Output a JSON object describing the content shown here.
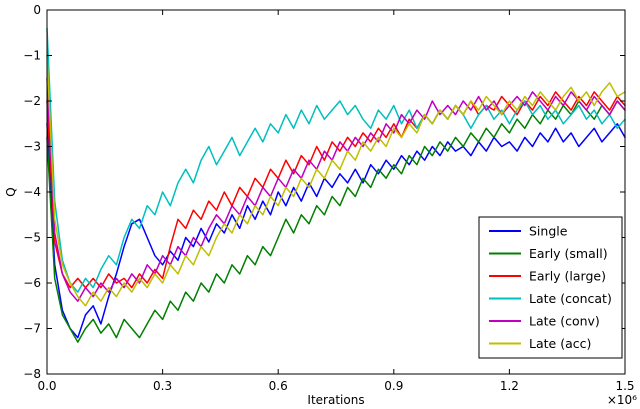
{
  "figure": {
    "xlabel": "Iterations",
    "ylabel": "Q",
    "x_offset_text": "×10⁶",
    "background_color": "#ffffff",
    "axes_color": "#000000"
  },
  "chart_data": {
    "type": "line",
    "title": "",
    "xlabel": "Iterations",
    "ylabel": "Q",
    "x_axis_multiplier_label": "×10⁶",
    "xlim": [
      0,
      1.5
    ],
    "ylim": [
      -8,
      0
    ],
    "grid": false,
    "legend_position": "lower right",
    "x_ticks": {
      "values": [
        0,
        0.3,
        0.6,
        0.9,
        1.2,
        1.5
      ],
      "labels": [
        "0.0",
        "0.3",
        "0.6",
        "0.9",
        "1.2",
        "1.5"
      ]
    },
    "y_ticks": {
      "values": [
        0,
        -1,
        -2,
        -3,
        -4,
        -5,
        -6,
        -7,
        -8
      ],
      "labels": [
        "0",
        "−1",
        "−2",
        "−3",
        "−4",
        "−5",
        "−6",
        "−7",
        "−8"
      ]
    },
    "x_start": 0,
    "x_step": 0.02,
    "series": [
      {
        "name": "Single",
        "color": "#0000ff",
        "values": [
          -2.5,
          -5.6,
          -6.6,
          -7.0,
          -7.2,
          -6.7,
          -6.5,
          -6.9,
          -6.3,
          -5.8,
          -5.2,
          -4.7,
          -4.6,
          -5.0,
          -5.4,
          -5.6,
          -5.3,
          -5.5,
          -5.0,
          -5.2,
          -4.8,
          -5.1,
          -4.7,
          -4.9,
          -4.5,
          -4.8,
          -4.3,
          -4.6,
          -4.2,
          -4.5,
          -4.0,
          -4.3,
          -3.9,
          -4.2,
          -3.8,
          -4.1,
          -3.7,
          -3.9,
          -3.6,
          -3.8,
          -3.5,
          -3.8,
          -3.4,
          -3.6,
          -3.3,
          -3.5,
          -3.2,
          -3.4,
          -3.1,
          -3.3,
          -3.0,
          -3.2,
          -2.9,
          -3.1,
          -3.0,
          -3.2,
          -2.9,
          -3.1,
          -2.8,
          -3.0,
          -2.9,
          -3.1,
          -2.8,
          -3.0,
          -2.7,
          -2.9,
          -2.6,
          -2.9,
          -2.7,
          -3.0,
          -2.8,
          -2.6,
          -2.9,
          -2.7,
          -2.5,
          -2.8
        ]
      },
      {
        "name": "Early (small)",
        "color": "#007f00",
        "values": [
          -2.8,
          -5.9,
          -6.7,
          -7.0,
          -7.3,
          -7.0,
          -6.8,
          -7.1,
          -6.9,
          -7.2,
          -6.8,
          -7.0,
          -7.2,
          -6.9,
          -6.6,
          -6.8,
          -6.4,
          -6.6,
          -6.2,
          -6.4,
          -6.0,
          -6.2,
          -5.8,
          -6.0,
          -5.6,
          -5.8,
          -5.4,
          -5.6,
          -5.2,
          -5.4,
          -5.0,
          -4.6,
          -4.9,
          -4.5,
          -4.7,
          -4.3,
          -4.5,
          -4.1,
          -4.3,
          -3.9,
          -4.1,
          -3.7,
          -3.9,
          -3.5,
          -3.7,
          -3.4,
          -3.6,
          -3.2,
          -3.4,
          -3.0,
          -3.2,
          -2.9,
          -3.1,
          -2.8,
          -3.0,
          -2.7,
          -2.9,
          -2.6,
          -2.8,
          -2.5,
          -2.7,
          -2.4,
          -2.6,
          -2.3,
          -2.5,
          -2.2,
          -2.4,
          -2.1,
          -2.3,
          -2.0,
          -2.2,
          -2.4,
          -2.1,
          -2.3,
          -2.0,
          -2.2
        ]
      },
      {
        "name": "Early (large)",
        "color": "#ff0000",
        "values": [
          -2.0,
          -5.1,
          -5.8,
          -6.1,
          -5.9,
          -6.1,
          -5.9,
          -6.1,
          -5.8,
          -6.0,
          -5.9,
          -6.1,
          -5.8,
          -6.0,
          -5.7,
          -5.9,
          -5.2,
          -4.6,
          -4.8,
          -4.4,
          -4.6,
          -4.2,
          -4.4,
          -4.0,
          -4.3,
          -3.9,
          -4.1,
          -3.7,
          -3.9,
          -3.5,
          -3.7,
          -3.3,
          -3.6,
          -3.2,
          -3.4,
          -3.0,
          -3.3,
          -2.9,
          -3.1,
          -2.8,
          -3.0,
          -2.7,
          -2.9,
          -2.6,
          -2.8,
          -2.5,
          -2.8,
          -2.4,
          -2.6,
          -2.3,
          -2.5,
          -2.2,
          -2.4,
          -2.1,
          -2.3,
          -2.0,
          -2.3,
          -2.1,
          -2.2,
          -1.9,
          -2.1,
          -2.3,
          -2.0,
          -2.2,
          -1.9,
          -2.1,
          -1.8,
          -2.0,
          -2.2,
          -1.9,
          -2.1,
          -1.8,
          -2.0,
          -2.2,
          -1.9,
          -2.1
        ]
      },
      {
        "name": "Late (concat)",
        "color": "#00bfbf",
        "values": [
          -0.4,
          -4.2,
          -5.5,
          -6.0,
          -6.2,
          -5.9,
          -6.1,
          -5.7,
          -5.4,
          -5.6,
          -5.0,
          -4.6,
          -4.8,
          -4.3,
          -4.5,
          -4.0,
          -4.3,
          -3.8,
          -3.5,
          -3.8,
          -3.3,
          -3.0,
          -3.4,
          -3.1,
          -2.8,
          -3.2,
          -2.9,
          -2.6,
          -2.9,
          -2.5,
          -2.7,
          -2.3,
          -2.6,
          -2.2,
          -2.5,
          -2.1,
          -2.4,
          -2.2,
          -2.0,
          -2.3,
          -2.1,
          -2.4,
          -2.6,
          -2.2,
          -2.4,
          -2.1,
          -2.5,
          -2.2,
          -2.6,
          -2.3,
          -2.5,
          -2.2,
          -2.4,
          -2.1,
          -2.3,
          -2.6,
          -2.3,
          -2.1,
          -2.4,
          -2.2,
          -2.5,
          -2.2,
          -2.0,
          -2.3,
          -2.1,
          -2.4,
          -2.2,
          -2.5,
          -2.3,
          -2.1,
          -2.4,
          -2.2,
          -2.5,
          -2.3,
          -2.6,
          -2.4
        ]
      },
      {
        "name": "Late (conv)",
        "color": "#bf00bf",
        "values": [
          -1.5,
          -4.9,
          -5.8,
          -6.2,
          -6.4,
          -6.1,
          -6.3,
          -6.0,
          -6.2,
          -5.9,
          -6.1,
          -5.8,
          -6.0,
          -5.6,
          -5.8,
          -5.4,
          -5.6,
          -5.2,
          -5.4,
          -5.0,
          -5.2,
          -4.8,
          -4.5,
          -4.7,
          -4.3,
          -4.5,
          -4.1,
          -4.3,
          -3.9,
          -4.1,
          -3.7,
          -3.9,
          -3.5,
          -3.7,
          -3.3,
          -3.5,
          -3.1,
          -3.3,
          -2.9,
          -3.1,
          -2.8,
          -3.0,
          -2.7,
          -2.9,
          -2.5,
          -2.7,
          -2.3,
          -2.5,
          -2.2,
          -2.4,
          -2.0,
          -2.3,
          -2.1,
          -2.3,
          -2.0,
          -2.2,
          -1.9,
          -2.2,
          -2.0,
          -2.3,
          -2.1,
          -1.9,
          -2.1,
          -1.8,
          -2.0,
          -2.2,
          -1.9,
          -2.1,
          -1.8,
          -2.0,
          -2.2,
          -1.9,
          -2.1,
          -2.3,
          -2.0,
          -2.2
        ]
      },
      {
        "name": "Late (acc)",
        "color": "#bfbf00",
        "values": [
          -1.0,
          -4.6,
          -5.6,
          -6.0,
          -6.3,
          -6.5,
          -6.2,
          -6.4,
          -6.1,
          -6.3,
          -6.0,
          -6.2,
          -5.9,
          -6.1,
          -5.8,
          -6.0,
          -5.6,
          -5.8,
          -5.4,
          -5.6,
          -5.2,
          -5.4,
          -5.0,
          -4.7,
          -4.9,
          -4.5,
          -4.7,
          -4.3,
          -4.5,
          -4.1,
          -4.3,
          -3.9,
          -4.1,
          -3.7,
          -3.9,
          -3.5,
          -3.7,
          -3.3,
          -3.5,
          -3.1,
          -3.3,
          -2.9,
          -3.1,
          -2.8,
          -3.0,
          -2.6,
          -2.8,
          -2.5,
          -2.7,
          -2.3,
          -2.5,
          -2.2,
          -2.4,
          -2.1,
          -2.3,
          -2.0,
          -2.2,
          -1.9,
          -2.1,
          -2.3,
          -2.0,
          -2.2,
          -1.9,
          -2.1,
          -1.8,
          -2.0,
          -2.2,
          -1.9,
          -1.7,
          -2.0,
          -1.8,
          -2.1,
          -1.8,
          -1.6,
          -1.9,
          -1.8
        ]
      }
    ]
  }
}
